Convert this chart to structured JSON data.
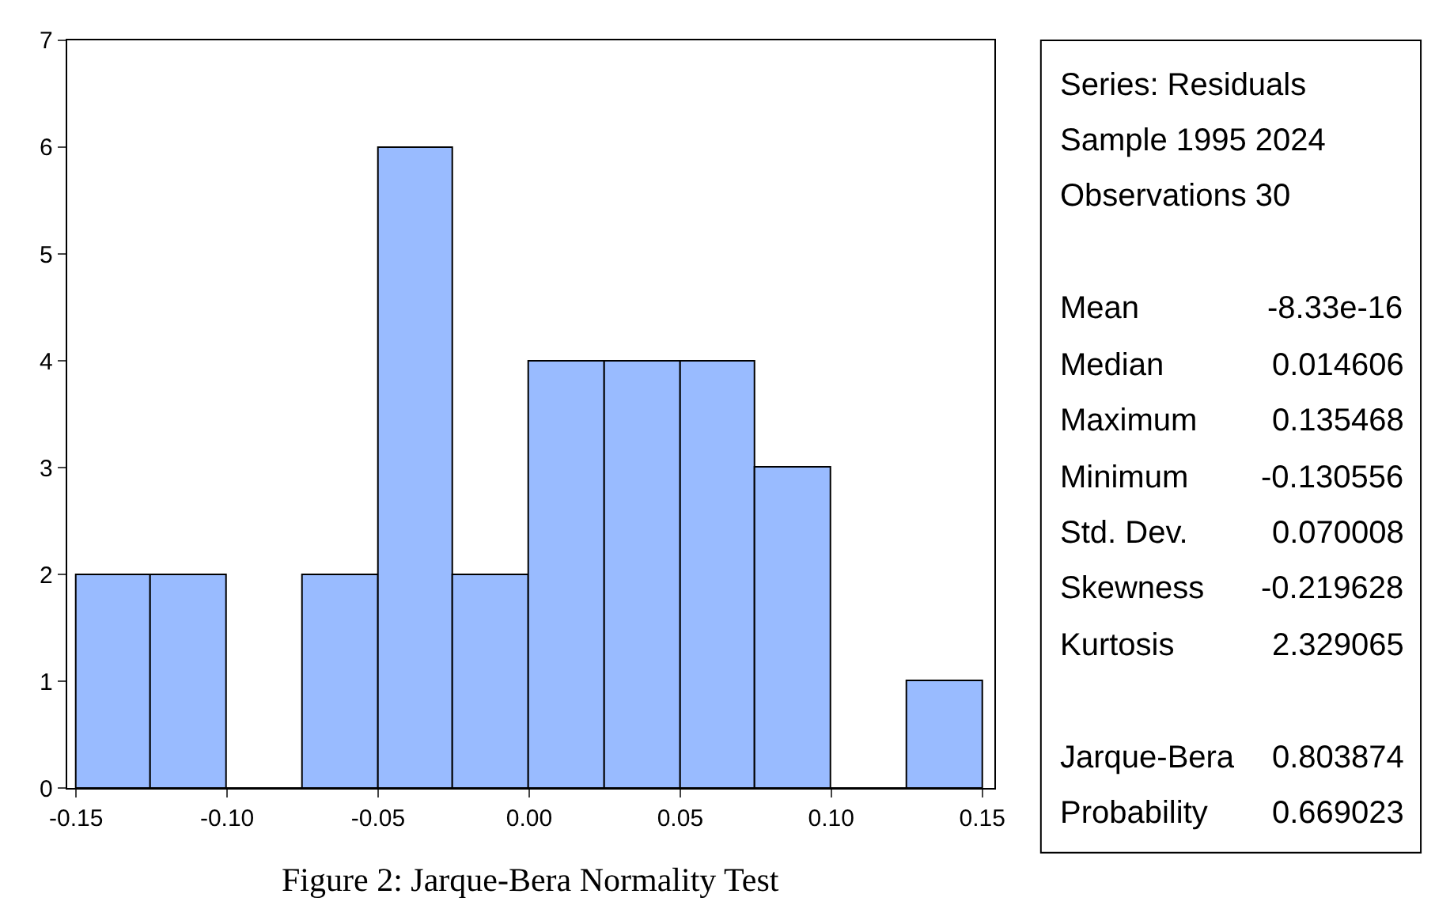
{
  "chart_data": [
    {
      "type": "histogram",
      "title": "Figure 2: Jarque-Bera Normality Test",
      "bins": [
        -0.15,
        -0.125,
        -0.1,
        -0.075,
        -0.05,
        -0.025,
        0,
        0.025,
        0.05,
        0.075,
        0.1,
        0.125,
        0.15
      ],
      "values": [
        2,
        2,
        0,
        2,
        6,
        2,
        4,
        4,
        4,
        3,
        0,
        1
      ],
      "color": "#99bbff",
      "xlim": [
        -0.153,
        0.154
      ],
      "xticks": [
        -0.15,
        {
          "value": -0.1,
          "label": "-0.10"
        },
        -0.05,
        {
          "value": 0,
          "label": "0.00"
        },
        0.05,
        {
          "value": 0.1,
          "label": "0.10"
        },
        0.15
      ],
      "ylim": [
        0,
        7
      ],
      "yticks": [
        0,
        1,
        2,
        3,
        4,
        5,
        6,
        7
      ]
    },
    {
      "type": "other",
      "annotations": [
        "Series: Residuals",
        "Sample 1995 2024",
        "Observations 30"
      ],
      "categories": [
        "Mean",
        "Median",
        "Maximum",
        "Minimum",
        "Std. Dev.",
        "Skewness",
        "Kurtosis",
        null,
        "Jarque-Bera",
        "Probability"
      ],
      "value_labels": [
        "-8.33e-16",
        "0.014606",
        "0.135468",
        "-0.130556",
        "0.070008",
        "-0.219628",
        "2.329065",
        null,
        "0.803874",
        "0.669023"
      ]
    }
  ]
}
